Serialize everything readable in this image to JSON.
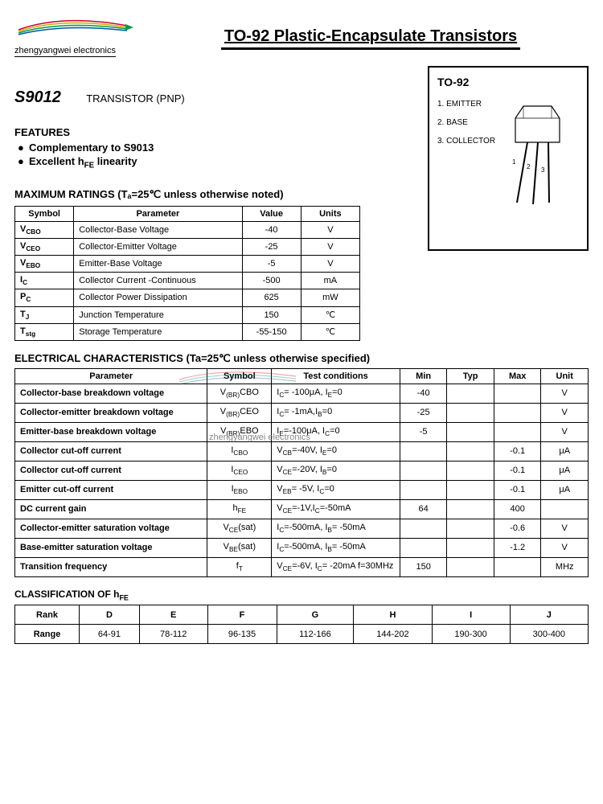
{
  "brand": "zhengyangwei electronics",
  "title": "TO-92 Plastic-Encapsulate Transistors",
  "part_number": "S9012",
  "part_type": "TRANSISTOR (PNP)",
  "package": {
    "name": "TO-92",
    "pins": [
      "1. EMITTER",
      "2. BASE",
      "3. COLLECTOR"
    ]
  },
  "features_heading": "FEATURES",
  "features": [
    "Complementary to S9013",
    "Excellent h_FE linearity"
  ],
  "ratings_heading": "MAXIMUM RATINGS (Tₐ=25℃ unless otherwise noted)",
  "ratings_columns": [
    "Symbol",
    "Parameter",
    "Value",
    "Units"
  ],
  "ratings_rows": [
    {
      "sym": "V_CBO",
      "param": "Collector-Base Voltage",
      "val": "-40",
      "unit": "V"
    },
    {
      "sym": "V_CEO",
      "param": "Collector-Emitter Voltage",
      "val": "-25",
      "unit": "V"
    },
    {
      "sym": "V_EBO",
      "param": "Emitter-Base Voltage",
      "val": "-5",
      "unit": "V"
    },
    {
      "sym": "I_C",
      "param": "Collector Current -Continuous",
      "val": "-500",
      "unit": "mA"
    },
    {
      "sym": "P_C",
      "param": "Collector Power Dissipation",
      "val": "625",
      "unit": "mW"
    },
    {
      "sym": "T_J",
      "param": "Junction Temperature",
      "val": "150",
      "unit": "℃"
    },
    {
      "sym": "T_stg",
      "param": "Storage Temperature",
      "val": "-55-150",
      "unit": "℃"
    }
  ],
  "elec_heading": "ELECTRICAL  CHARACTERISTICS (Ta=25℃ unless otherwise specified)",
  "elec_columns": [
    "Parameter",
    "Symbol",
    "Test     conditions",
    "Min",
    "Typ",
    "Max",
    "Unit"
  ],
  "elec_rows": [
    {
      "p": "Collector-base breakdown voltage",
      "s": "V_(BR)CBO",
      "c": "I_C= -100μA, I_E=0",
      "min": "-40",
      "typ": "",
      "max": "",
      "u": "V"
    },
    {
      "p": "Collector-emitter breakdown voltage",
      "s": "V_(BR)CEO",
      "c": "I_C= -1mA,I_B=0",
      "min": "-25",
      "typ": "",
      "max": "",
      "u": "V"
    },
    {
      "p": "Emitter-base breakdown voltage",
      "s": "V_(BR)EBO",
      "c": "I_E=-100μA, I_C=0",
      "min": "-5",
      "typ": "",
      "max": "",
      "u": "V"
    },
    {
      "p": "Collector cut-off current",
      "s": "I_CBO",
      "c": "V_CB=-40V, I_E=0",
      "min": "",
      "typ": "",
      "max": "-0.1",
      "u": "μA"
    },
    {
      "p": "Collector cut-off current",
      "s": "I_CEO",
      "c": "V_CE=-20V, I_B=0",
      "min": "",
      "typ": "",
      "max": "-0.1",
      "u": "μA"
    },
    {
      "p": "Emitter cut-off current",
      "s": "I_EBO",
      "c": "V_EB= -5V, I_C=0",
      "min": "",
      "typ": "",
      "max": "-0.1",
      "u": "μA"
    },
    {
      "p": "DC current gain",
      "s": "h_FE",
      "c": "V_CE=-1V,I_C=-50mA",
      "min": "64",
      "typ": "",
      "max": "400",
      "u": ""
    },
    {
      "p": "Collector-emitter saturation voltage",
      "s": "V_CE(sat)",
      "c": "I_C=-500mA, I_B= -50mA",
      "min": "",
      "typ": "",
      "max": "-0.6",
      "u": "V"
    },
    {
      "p": "Base-emitter saturation voltage",
      "s": "V_BE(sat)",
      "c": "I_C=-500mA, I_B= -50mA",
      "min": "",
      "typ": "",
      "max": "-1.2",
      "u": "V"
    },
    {
      "p": "Transition frequency",
      "s": "f_T",
      "c": "V_CE=-6V, I_C= -20mA f=30MHz",
      "min": "150",
      "typ": "",
      "max": "",
      "u": "MHz"
    }
  ],
  "class_heading": "CLASSIFICATION OF h_FE",
  "class_columns": [
    "Rank",
    "D",
    "E",
    "F",
    "G",
    "H",
    "I",
    "J"
  ],
  "class_row_label": "Range",
  "class_values": [
    "64-91",
    "78-112",
    "96-135",
    "112-166",
    "144-202",
    "190-300",
    "300-400"
  ],
  "watermark": "zhengyangwei electronics",
  "colors": {
    "text": "#000000",
    "border": "#000000",
    "bg": "#ffffff",
    "logo_red": "#cc0033",
    "logo_yellow": "#ccaa00",
    "logo_green": "#009944",
    "logo_blue": "#0055aa",
    "watermark": "#888888"
  }
}
